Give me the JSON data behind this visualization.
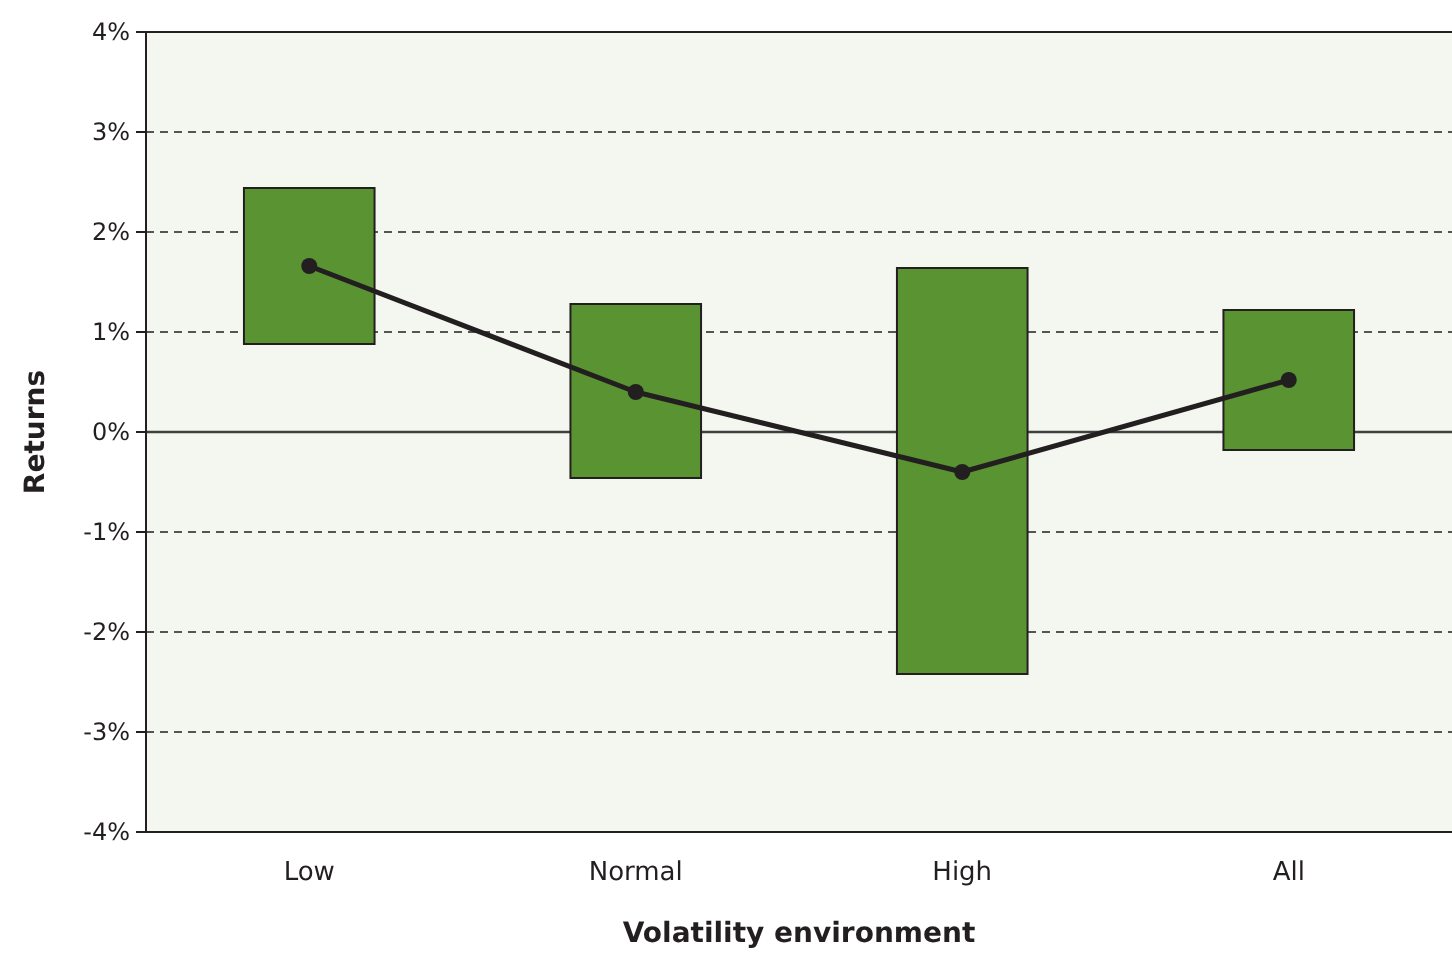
{
  "chart_data": {
    "type": "bar",
    "categories": [
      "Low",
      "Normal",
      "High",
      "All"
    ],
    "xlabel": "Volatility environment",
    "ylabel": "Returns",
    "ylim": [
      -4,
      4
    ],
    "yticks": [
      {
        "value": -4,
        "label": "-4%"
      },
      {
        "value": -3,
        "label": "-3%"
      },
      {
        "value": -2,
        "label": "-2%"
      },
      {
        "value": -1,
        "label": "-1%"
      },
      {
        "value": 0,
        "label": "0%"
      },
      {
        "value": 1,
        "label": "1%"
      },
      {
        "value": 2,
        "label": "2%"
      },
      {
        "value": 3,
        "label": "3%"
      },
      {
        "value": 4,
        "label": "4%"
      }
    ],
    "grid": "y",
    "ref_lines": [
      {
        "axis": "y",
        "value": 0,
        "color": "#404040",
        "line_style": "solid"
      }
    ],
    "series": [
      {
        "color": "#5a9432",
        "base": [
          0.88,
          -0.46,
          -2.42,
          -0.18
        ],
        "values": [
          1.56,
          1.74,
          4.06,
          1.4
        ]
      },
      {
        "type": "line",
        "color": "#231f20",
        "marker": "circle",
        "line_style": "solid",
        "values": [
          1.66,
          0.4,
          -0.4,
          0.52
        ]
      }
    ]
  }
}
